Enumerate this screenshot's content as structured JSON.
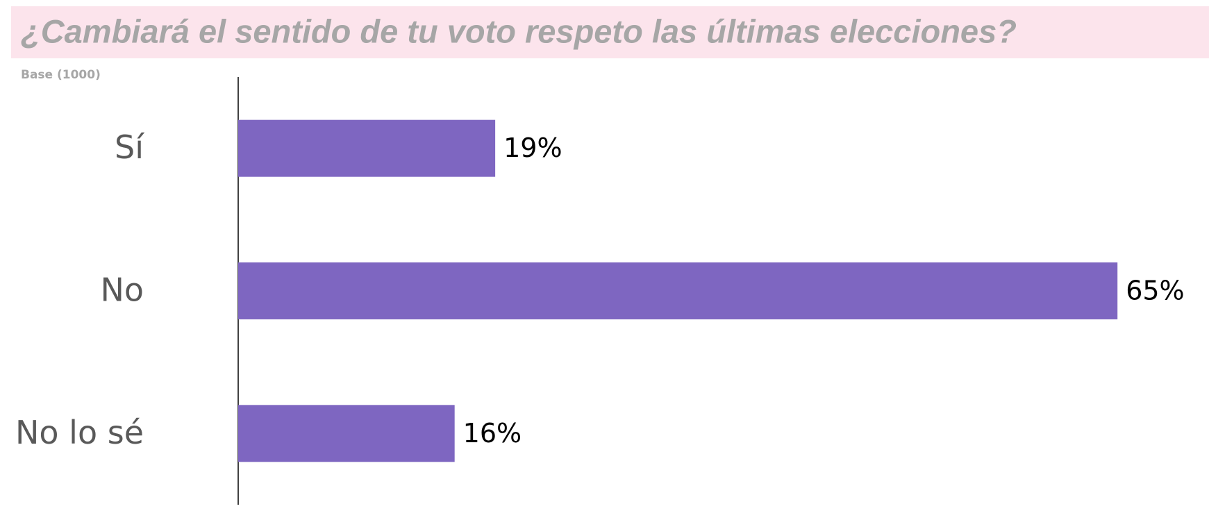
{
  "chart_data": {
    "type": "bar",
    "orientation": "horizontal",
    "title": "¿Cambiará el sentido de tu voto respeto las últimas elecciones?",
    "subtitle": "Base (1000)",
    "categories": [
      "Sí",
      "No",
      "No lo sé"
    ],
    "values": [
      19,
      65,
      16
    ],
    "value_labels": [
      "19%",
      "65%",
      "16%"
    ],
    "color": "#7e66c1"
  }
}
